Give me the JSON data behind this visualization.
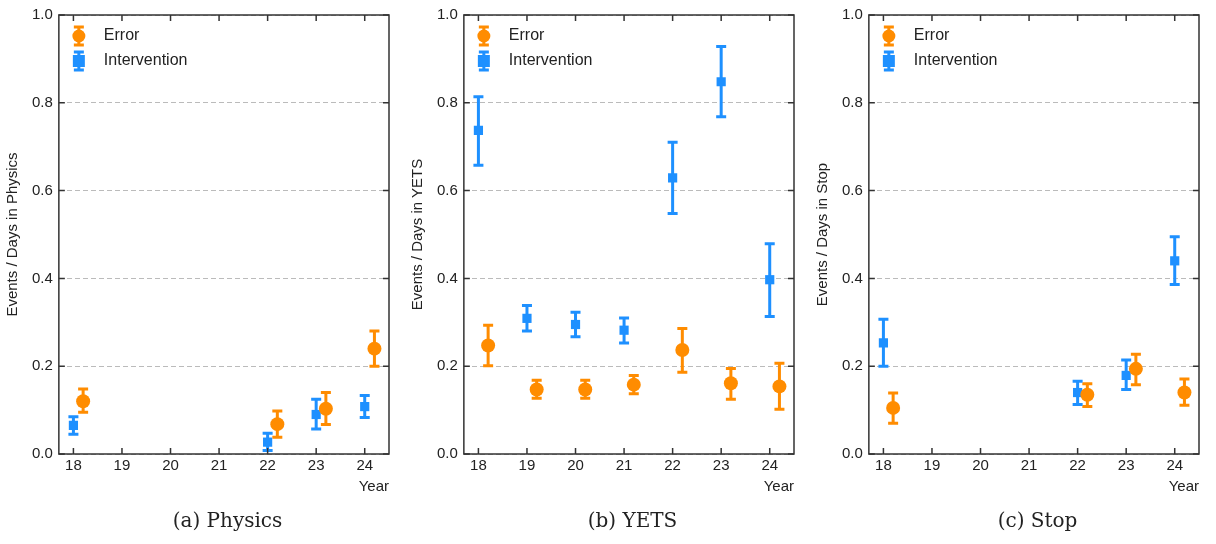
{
  "chart_data": [
    {
      "type": "scatter",
      "xlabel": "Year",
      "ylabel": "Events / Days in Physics",
      "annotations": [
        "(a) Physics"
      ],
      "xlim": [
        17.7,
        24.5
      ],
      "ylim": [
        0,
        1
      ],
      "xticks": [
        18,
        19,
        20,
        21,
        22,
        23,
        24
      ],
      "yticks": [
        {
          "value": 0,
          "label": "0.0"
        },
        {
          "value": 0.2,
          "label": "0.2"
        },
        {
          "value": 0.4,
          "label": "0.4"
        },
        {
          "value": 0.6,
          "label": "0.6"
        },
        {
          "value": 0.8,
          "label": "0.8"
        },
        {
          "value": 1,
          "label": "1.0"
        }
      ],
      "grid": "y",
      "legend": "top left",
      "series": [
        {
          "name": "Error",
          "color": "#ff8c00",
          "marker": "circle",
          "x": [
            18.2,
            22.2,
            23.2,
            24.2
          ],
          "values": [
            0.12,
            0.068,
            0.103,
            0.24
          ],
          "errors": [
            [
              0.095,
              0.148
            ],
            [
              0.038,
              0.098
            ],
            [
              0.067,
              0.14
            ],
            [
              0.2,
              0.28
            ]
          ]
        },
        {
          "name": "Intervention",
          "color": "#1e90ff",
          "marker": "square",
          "x": [
            18,
            22,
            23,
            24
          ],
          "values": [
            0.065,
            0.027,
            0.09,
            0.108
          ],
          "errors": [
            [
              0.045,
              0.085
            ],
            [
              0.008,
              0.047
            ],
            [
              0.057,
              0.125
            ],
            [
              0.083,
              0.133
            ]
          ]
        }
      ]
    },
    {
      "type": "scatter",
      "xlabel": "Year",
      "ylabel": "Events / Days in YETS",
      "annotations": [
        "(b) YETS"
      ],
      "xlim": [
        17.7,
        24.5
      ],
      "ylim": [
        0,
        1
      ],
      "xticks": [
        18,
        19,
        20,
        21,
        22,
        23,
        24
      ],
      "yticks": [
        {
          "value": 0,
          "label": "0.0"
        },
        {
          "value": 0.2,
          "label": "0.2"
        },
        {
          "value": 0.4,
          "label": "0.4"
        },
        {
          "value": 0.6,
          "label": "0.6"
        },
        {
          "value": 0.8,
          "label": "0.8"
        },
        {
          "value": 1,
          "label": "1.0"
        }
      ],
      "grid": "y",
      "legend": "top left",
      "series": [
        {
          "name": "Error",
          "color": "#ff8c00",
          "marker": "circle",
          "x": [
            18.2,
            19.2,
            20.2,
            21.2,
            22.2,
            23.2,
            24.2
          ],
          "values": [
            0.247,
            0.147,
            0.147,
            0.158,
            0.237,
            0.161,
            0.154
          ],
          "errors": [
            [
              0.201,
              0.293
            ],
            [
              0.127,
              0.168
            ],
            [
              0.127,
              0.168
            ],
            [
              0.137,
              0.179
            ],
            [
              0.186,
              0.286
            ],
            [
              0.125,
              0.195
            ],
            [
              0.102,
              0.207
            ]
          ]
        },
        {
          "name": "Intervention",
          "color": "#1e90ff",
          "marker": "square",
          "x": [
            18,
            19,
            20,
            21,
            22,
            23,
            24
          ],
          "values": [
            0.737,
            0.309,
            0.295,
            0.282,
            0.629,
            0.848,
            0.397
          ],
          "errors": [
            [
              0.658,
              0.814
            ],
            [
              0.28,
              0.338
            ],
            [
              0.267,
              0.323
            ],
            [
              0.253,
              0.31
            ],
            [
              0.548,
              0.71
            ],
            [
              0.768,
              0.928
            ],
            [
              0.313,
              0.479
            ]
          ]
        }
      ]
    },
    {
      "type": "scatter",
      "xlabel": "Year",
      "ylabel": "Events / Days in Stop",
      "annotations": [
        "(c) Stop"
      ],
      "xlim": [
        17.7,
        24.5
      ],
      "ylim": [
        0,
        1
      ],
      "xticks": [
        18,
        19,
        20,
        21,
        22,
        23,
        24
      ],
      "yticks": [
        {
          "value": 0,
          "label": "0.0"
        },
        {
          "value": 0.2,
          "label": "0.2"
        },
        {
          "value": 0.4,
          "label": "0.4"
        },
        {
          "value": 0.6,
          "label": "0.6"
        },
        {
          "value": 0.8,
          "label": "0.8"
        },
        {
          "value": 1,
          "label": "1.0"
        }
      ],
      "grid": "y",
      "legend": "top left",
      "series": [
        {
          "name": "Error",
          "color": "#ff8c00",
          "marker": "circle",
          "x": [
            18.2,
            22.2,
            23.2,
            24.2
          ],
          "values": [
            0.105,
            0.135,
            0.194,
            0.14
          ],
          "errors": [
            [
              0.07,
              0.139
            ],
            [
              0.108,
              0.16
            ],
            [
              0.158,
              0.227
            ],
            [
              0.111,
              0.171
            ]
          ]
        },
        {
          "name": "Intervention",
          "color": "#1e90ff",
          "marker": "square",
          "x": [
            18,
            22,
            23,
            24
          ],
          "values": [
            0.253,
            0.14,
            0.179,
            0.44
          ],
          "errors": [
            [
              0.2,
              0.307
            ],
            [
              0.113,
              0.166
            ],
            [
              0.147,
              0.214
            ],
            [
              0.386,
              0.495
            ]
          ]
        }
      ]
    }
  ]
}
